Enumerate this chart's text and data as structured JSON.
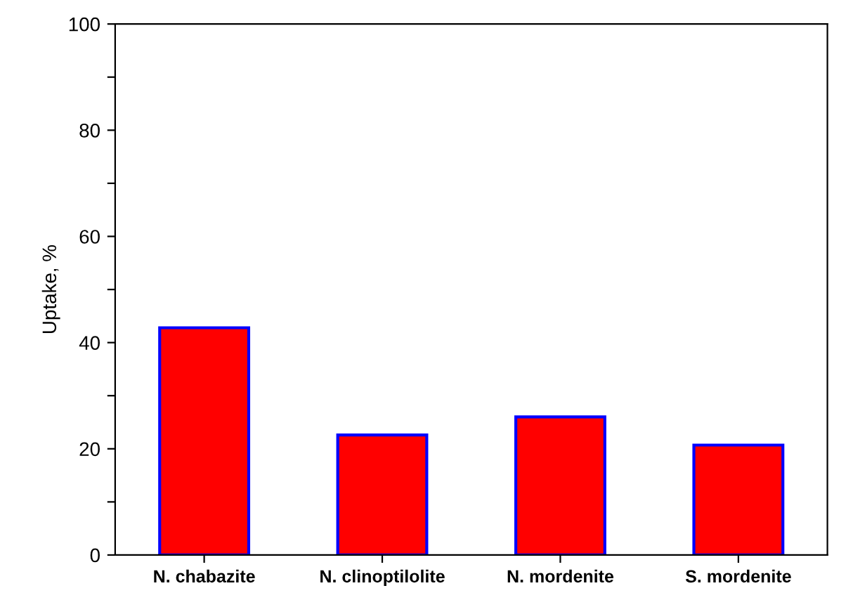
{
  "chart_data": {
    "type": "bar",
    "ylabel": "Uptake, %",
    "categories": [
      "N. chabazite",
      "N. clinoptilolite",
      "N. mordenite",
      "S. mordenite"
    ],
    "series": [
      {
        "color": "#ff0000",
        "values": [
          42.8,
          22.6,
          26,
          20.7
        ]
      }
    ],
    "ylim": [
      0,
      100
    ],
    "yticks": [
      0,
      {
        "value": 10,
        "label": null
      },
      20,
      {
        "value": 30,
        "label": null
      },
      40,
      {
        "value": 50,
        "label": null
      },
      60,
      {
        "value": 70,
        "label": null
      },
      80,
      {
        "value": 90,
        "label": null
      },
      100
    ],
    "grid": false,
    "legend": false
  }
}
